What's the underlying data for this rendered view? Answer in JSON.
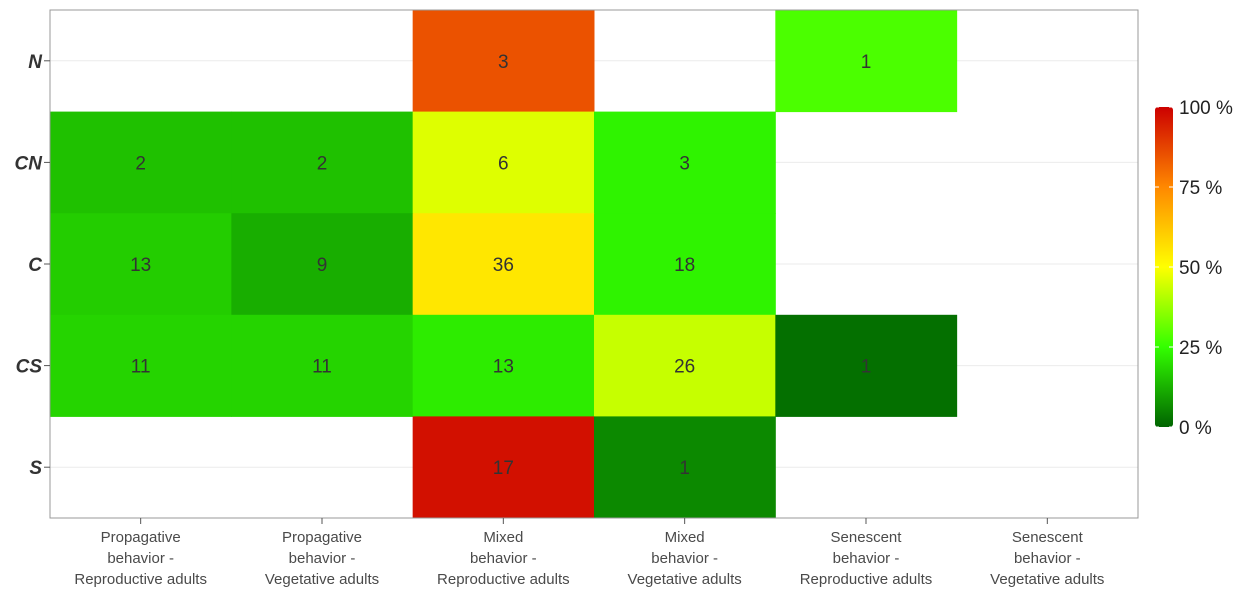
{
  "chart_data": {
    "type": "heatmap",
    "rows": [
      "N",
      "CN",
      "C",
      "CS",
      "S"
    ],
    "columns": [
      [
        "Propagative",
        "behavior -",
        "Reproductive adults"
      ],
      [
        "Propagative",
        "behavior -",
        "Vegetative adults"
      ],
      [
        "Mixed",
        "behavior -",
        "Reproductive adults"
      ],
      [
        "Mixed",
        "behavior -",
        "Vegetative adults"
      ],
      [
        "Senescent",
        "behavior -",
        "Reproductive adults"
      ],
      [
        "Senescent",
        "behavior -",
        "Vegetative adults"
      ]
    ],
    "cells": [
      {
        "row": 0,
        "col": 2,
        "count": "3",
        "percent": 85
      },
      {
        "row": 0,
        "col": 4,
        "count": "1",
        "percent": 28
      },
      {
        "row": 1,
        "col": 0,
        "count": "2",
        "percent": 15
      },
      {
        "row": 1,
        "col": 1,
        "count": "2",
        "percent": 15
      },
      {
        "row": 1,
        "col": 2,
        "count": "6",
        "percent": 46
      },
      {
        "row": 1,
        "col": 3,
        "count": "3",
        "percent": 23
      },
      {
        "row": 2,
        "col": 0,
        "count": "13",
        "percent": 17
      },
      {
        "row": 2,
        "col": 1,
        "count": "9",
        "percent": 12
      },
      {
        "row": 2,
        "col": 2,
        "count": "36",
        "percent": 55
      },
      {
        "row": 2,
        "col": 3,
        "count": "18",
        "percent": 23
      },
      {
        "row": 3,
        "col": 0,
        "count": "11",
        "percent": 18
      },
      {
        "row": 3,
        "col": 1,
        "count": "11",
        "percent": 18
      },
      {
        "row": 3,
        "col": 2,
        "count": "13",
        "percent": 22
      },
      {
        "row": 3,
        "col": 3,
        "count": "26",
        "percent": 43
      },
      {
        "row": 3,
        "col": 4,
        "count": "1",
        "percent": 2
      },
      {
        "row": 4,
        "col": 2,
        "count": "17",
        "percent": 97
      },
      {
        "row": 4,
        "col": 3,
        "count": "1",
        "percent": 6
      }
    ],
    "colorbar": {
      "labels": [
        "100 %",
        "75 %",
        "50 %",
        "25 %",
        "0 %"
      ],
      "values": [
        100,
        75,
        50,
        25,
        0
      ],
      "stops": [
        {
          "value": 0,
          "color": "#006400"
        },
        {
          "value": 25,
          "color": "#33ff00"
        },
        {
          "value": 50,
          "color": "#ffff00"
        },
        {
          "value": 75,
          "color": "#ff8800"
        },
        {
          "value": 100,
          "color": "#cc0000"
        }
      ]
    },
    "legend_position": "right",
    "grid": true
  }
}
